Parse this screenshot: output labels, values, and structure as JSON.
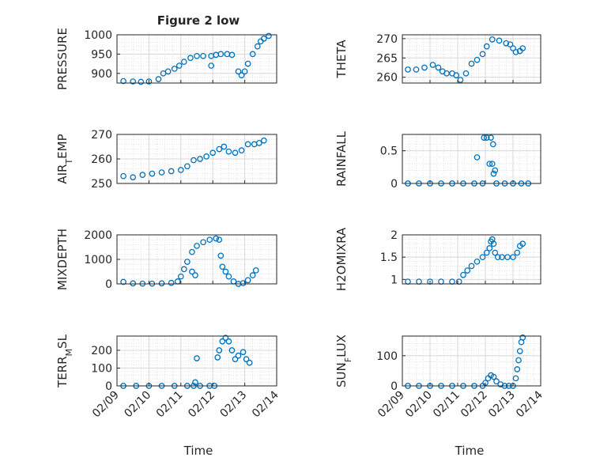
{
  "figure": {
    "title": "Figure 2 low",
    "xlabel": "Time"
  },
  "colors": {
    "marker": "#0072bd",
    "axis": "#262626",
    "grid": "#dcdcdc",
    "background": "#ffffff"
  },
  "chart_data": [
    {
      "type": "scatter",
      "title": "Figure 2 low",
      "ylabel": "PRESSURE",
      "xlim": [
        "02/09",
        "02/14"
      ],
      "ylim": [
        875,
        1000
      ],
      "yticks": [
        900,
        950,
        1000
      ],
      "ytick_labels": [
        "900",
        "950",
        "1000"
      ],
      "xtick_labels": [],
      "grid": true,
      "series": [
        {
          "points": [
            [
              0.2,
              880
            ],
            [
              0.5,
              879
            ],
            [
              0.75,
              878
            ],
            [
              1.0,
              879
            ],
            [
              1.3,
              885
            ],
            [
              1.45,
              900
            ],
            [
              1.6,
              905
            ],
            [
              1.8,
              912
            ],
            [
              1.95,
              920
            ],
            [
              2.1,
              930
            ],
            [
              2.3,
              940
            ],
            [
              2.5,
              945
            ],
            [
              2.7,
              945
            ],
            [
              2.95,
              945
            ],
            [
              3.1,
              948
            ],
            [
              3.25,
              950
            ],
            [
              3.45,
              950
            ],
            [
              3.6,
              948
            ],
            [
              2.95,
              920
            ],
            [
              3.8,
              905
            ],
            [
              3.9,
              895
            ],
            [
              4.0,
              905
            ],
            [
              4.1,
              925
            ],
            [
              4.25,
              950
            ],
            [
              4.4,
              970
            ],
            [
              4.5,
              983
            ],
            [
              4.6,
              990
            ],
            [
              4.75,
              997
            ]
          ]
        }
      ]
    },
    {
      "type": "scatter",
      "ylabel": "THETA",
      "xlim": [
        "02/09",
        "02/14"
      ],
      "ylim": [
        258.5,
        271
      ],
      "yticks": [
        260,
        265,
        270
      ],
      "ytick_labels": [
        "260",
        "265",
        "270"
      ],
      "xtick_labels": [],
      "grid": true,
      "series": [
        {
          "points": [
            [
              0.2,
              262
            ],
            [
              0.5,
              262
            ],
            [
              0.8,
              262.5
            ],
            [
              1.1,
              263.2
            ],
            [
              1.3,
              262.5
            ],
            [
              1.45,
              261.5
            ],
            [
              1.6,
              261
            ],
            [
              1.8,
              261
            ],
            [
              1.95,
              260.5
            ],
            [
              2.1,
              259.3
            ],
            [
              2.3,
              261
            ],
            [
              2.5,
              263.5
            ],
            [
              2.7,
              264.5
            ],
            [
              2.9,
              266
            ],
            [
              3.05,
              268
            ],
            [
              3.25,
              269.8
            ],
            [
              3.5,
              269.5
            ],
            [
              3.75,
              268.8
            ],
            [
              3.9,
              268.5
            ],
            [
              4.0,
              267.5
            ],
            [
              4.1,
              266.5
            ],
            [
              4.25,
              266.8
            ],
            [
              4.35,
              267.5
            ]
          ]
        }
      ]
    },
    {
      "type": "scatter",
      "ylabel": "AIR_TEMP",
      "xlim": [
        "02/09",
        "02/14"
      ],
      "ylim": [
        250,
        270
      ],
      "yticks": [
        250,
        260,
        270
      ],
      "ytick_labels": [
        "250",
        "260",
        "270"
      ],
      "xtick_labels": [],
      "grid": true,
      "series": [
        {
          "points": [
            [
              0.2,
              253
            ],
            [
              0.5,
              252.5
            ],
            [
              0.8,
              253.5
            ],
            [
              1.1,
              254
            ],
            [
              1.4,
              254.5
            ],
            [
              1.7,
              255
            ],
            [
              2.0,
              255.5
            ],
            [
              2.2,
              257
            ],
            [
              2.4,
              259.5
            ],
            [
              2.6,
              260
            ],
            [
              2.8,
              261
            ],
            [
              3.0,
              262.5
            ],
            [
              3.2,
              264
            ],
            [
              3.35,
              265
            ],
            [
              3.5,
              263
            ],
            [
              3.7,
              262.5
            ],
            [
              3.9,
              263.5
            ],
            [
              4.1,
              266
            ],
            [
              4.3,
              266
            ],
            [
              4.45,
              266.5
            ],
            [
              4.6,
              267.5
            ]
          ]
        }
      ]
    },
    {
      "type": "scatter",
      "ylabel": "RAINFALL",
      "xlim": [
        "02/09",
        "02/14"
      ],
      "ylim": [
        0,
        0.75
      ],
      "yticks": [
        0,
        0.5
      ],
      "ytick_labels": [
        "0",
        "0.5"
      ],
      "xtick_labels": [],
      "grid": true,
      "series": [
        {
          "points": [
            [
              0.2,
              0
            ],
            [
              0.6,
              0
            ],
            [
              1.0,
              0
            ],
            [
              1.4,
              0
            ],
            [
              1.8,
              0
            ],
            [
              2.2,
              0
            ],
            [
              2.6,
              0
            ],
            [
              2.9,
              0
            ],
            [
              2.7,
              0.4
            ],
            [
              2.95,
              0.7
            ],
            [
              3.05,
              0.7
            ],
            [
              3.15,
              0.3
            ],
            [
              3.2,
              0.7
            ],
            [
              3.25,
              0.3
            ],
            [
              3.28,
              0.6
            ],
            [
              3.3,
              0.15
            ],
            [
              3.35,
              0.2
            ],
            [
              3.4,
              0
            ],
            [
              3.7,
              0
            ],
            [
              4.0,
              0
            ],
            [
              4.3,
              0
            ],
            [
              4.55,
              0
            ]
          ]
        }
      ]
    },
    {
      "type": "scatter",
      "ylabel": "MIXDEPTH",
      "xlim": [
        "02/09",
        "02/14"
      ],
      "ylim": [
        0,
        2000
      ],
      "yticks": [
        0,
        1000,
        2000
      ],
      "ytick_labels": [
        "0",
        "1000",
        "2000"
      ],
      "xtick_labels": [],
      "grid": true,
      "series": [
        {
          "points": [
            [
              0.2,
              80
            ],
            [
              0.5,
              20
            ],
            [
              0.8,
              10
            ],
            [
              1.1,
              10
            ],
            [
              1.4,
              20
            ],
            [
              1.7,
              40
            ],
            [
              1.9,
              100
            ],
            [
              2.0,
              300
            ],
            [
              2.1,
              600
            ],
            [
              2.2,
              900
            ],
            [
              2.35,
              1300
            ],
            [
              2.5,
              1550
            ],
            [
              2.7,
              1700
            ],
            [
              2.9,
              1800
            ],
            [
              3.1,
              1850
            ],
            [
              3.2,
              1800
            ],
            [
              2.35,
              500
            ],
            [
              2.45,
              350
            ],
            [
              3.25,
              1150
            ],
            [
              3.3,
              700
            ],
            [
              3.4,
              500
            ],
            [
              3.5,
              300
            ],
            [
              3.65,
              100
            ],
            [
              3.8,
              0
            ],
            [
              3.95,
              30
            ],
            [
              4.1,
              150
            ],
            [
              4.25,
              350
            ],
            [
              4.35,
              550
            ]
          ]
        }
      ]
    },
    {
      "type": "scatter",
      "ylabel": "H2OMIXRA",
      "xlim": [
        "02/09",
        "02/14"
      ],
      "ylim": [
        0.9,
        2.0
      ],
      "yticks": [
        1,
        1.5,
        2
      ],
      "ytick_labels": [
        "1",
        "1.5",
        "2"
      ],
      "xtick_labels": [],
      "grid": true,
      "series": [
        {
          "points": [
            [
              0.2,
              0.95
            ],
            [
              0.6,
              0.95
            ],
            [
              1.0,
              0.95
            ],
            [
              1.4,
              0.95
            ],
            [
              1.8,
              0.95
            ],
            [
              2.05,
              0.95
            ],
            [
              2.2,
              1.1
            ],
            [
              2.35,
              1.2
            ],
            [
              2.5,
              1.3
            ],
            [
              2.7,
              1.4
            ],
            [
              2.9,
              1.5
            ],
            [
              3.05,
              1.6
            ],
            [
              3.15,
              1.7
            ],
            [
              3.2,
              1.85
            ],
            [
              3.25,
              1.9
            ],
            [
              3.3,
              1.8
            ],
            [
              3.35,
              1.6
            ],
            [
              3.45,
              1.5
            ],
            [
              3.6,
              1.5
            ],
            [
              3.8,
              1.5
            ],
            [
              4.0,
              1.5
            ],
            [
              4.15,
              1.6
            ],
            [
              4.25,
              1.75
            ],
            [
              4.35,
              1.8
            ]
          ]
        }
      ]
    },
    {
      "type": "scatter",
      "ylabel": "TERR_MSL",
      "xlim": [
        "02/09",
        "02/14"
      ],
      "ylim": [
        0,
        280
      ],
      "yticks": [
        0,
        100,
        200
      ],
      "ytick_labels": [
        "0",
        "100",
        "200"
      ],
      "xtick_labels": [
        "02/09",
        "02/10",
        "02/11",
        "02/12",
        "02/13",
        "02/14"
      ],
      "grid": true,
      "series": [
        {
          "points": [
            [
              0.2,
              0
            ],
            [
              0.6,
              0
            ],
            [
              1.0,
              0
            ],
            [
              1.4,
              0
            ],
            [
              1.8,
              0
            ],
            [
              2.2,
              0
            ],
            [
              2.4,
              0
            ],
            [
              2.45,
              20
            ],
            [
              2.5,
              155
            ],
            [
              2.6,
              0
            ],
            [
              2.9,
              0
            ],
            [
              3.05,
              0
            ],
            [
              3.15,
              160
            ],
            [
              3.2,
              200
            ],
            [
              3.3,
              250
            ],
            [
              3.4,
              270
            ],
            [
              3.5,
              250
            ],
            [
              3.6,
              200
            ],
            [
              3.7,
              150
            ],
            [
              3.8,
              170
            ],
            [
              3.95,
              190
            ],
            [
              4.05,
              150
            ],
            [
              4.15,
              130
            ]
          ]
        }
      ]
    },
    {
      "type": "scatter",
      "ylabel": "SUN_FLUX",
      "xlim": [
        "02/09",
        "02/14"
      ],
      "ylim": [
        0,
        165
      ],
      "yticks": [
        0,
        100
      ],
      "ytick_labels": [
        "0",
        "100"
      ],
      "xtick_labels": [
        "02/09",
        "02/10",
        "02/11",
        "02/12",
        "02/13",
        "02/14"
      ],
      "grid": true,
      "series": [
        {
          "points": [
            [
              0.2,
              0
            ],
            [
              0.6,
              0
            ],
            [
              1.0,
              0
            ],
            [
              1.4,
              0
            ],
            [
              1.8,
              0
            ],
            [
              2.2,
              0
            ],
            [
              2.6,
              0
            ],
            [
              2.9,
              0
            ],
            [
              3.0,
              10
            ],
            [
              3.1,
              25
            ],
            [
              3.2,
              35
            ],
            [
              3.3,
              30
            ],
            [
              3.4,
              15
            ],
            [
              3.55,
              5
            ],
            [
              3.7,
              0
            ],
            [
              3.85,
              0
            ],
            [
              4.0,
              0
            ],
            [
              4.1,
              25
            ],
            [
              4.15,
              55
            ],
            [
              4.2,
              85
            ],
            [
              4.25,
              115
            ],
            [
              4.3,
              145
            ],
            [
              4.35,
              160
            ]
          ]
        }
      ]
    }
  ]
}
